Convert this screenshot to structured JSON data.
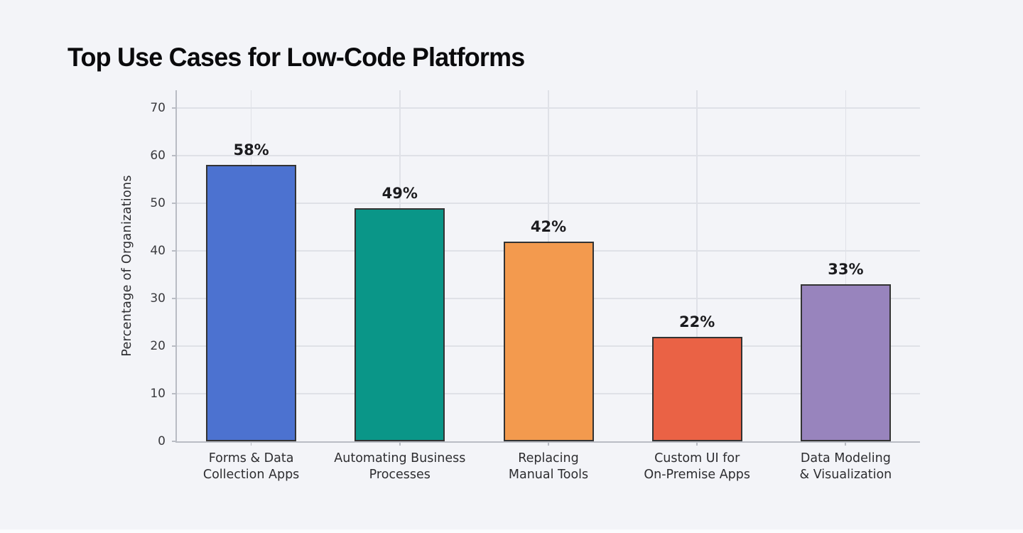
{
  "title": "Top Use Cases for Low-Code Platforms",
  "page": {
    "background_color": "#f3f4f8",
    "footer_strip_color": "#fbfcfe"
  },
  "chart_data": {
    "type": "bar",
    "title": "Top Use Cases for Low-Code Platforms",
    "categories": [
      "Forms & Data\nCollection Apps",
      "Automating Business\nProcesses",
      "Replacing\nManual Tools",
      "Custom UI for\nOn-Premise Apps",
      "Data Modeling\n& Visualization"
    ],
    "values": [
      58,
      49,
      42,
      22,
      33
    ],
    "value_labels": [
      "58%",
      "49%",
      "42%",
      "22%",
      "33%"
    ],
    "xlabel": "",
    "ylabel": "Percentage of Organizations",
    "ylim": [
      0,
      70
    ],
    "yticks": [
      0,
      10,
      20,
      30,
      40,
      50,
      60,
      70
    ],
    "grid": true,
    "legend": "none",
    "bar_colors": [
      "#4c72d0",
      "#0a9688",
      "#f39a4e",
      "#ea6245",
      "#9884bd"
    ],
    "bar_edge_color": "#333333",
    "gridline_color": "#dfe1e7",
    "spine_color": "#b9bcc4",
    "tick_label_color": "#3a3a3e",
    "value_label_color": "#1b1b1e"
  }
}
